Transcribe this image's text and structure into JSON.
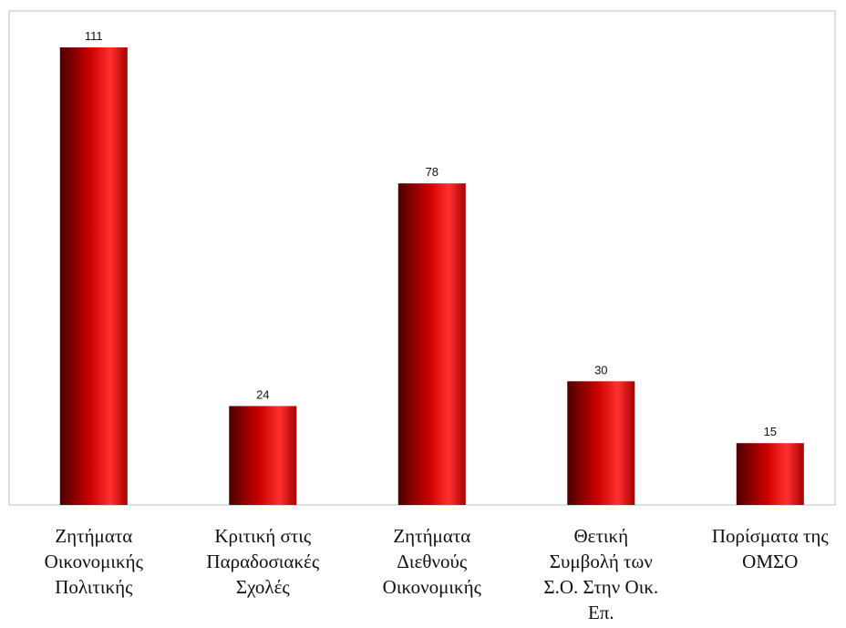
{
  "chart_data": {
    "type": "bar",
    "title": "",
    "xlabel": "",
    "ylabel": "",
    "categories": [
      [
        "Ζητήματα",
        "Οικονομικής",
        "Πολιτικής"
      ],
      [
        "Κριτική στις",
        "Παραδοσιακές",
        "Σχολές"
      ],
      [
        "Ζητήματα",
        "Διεθνούς",
        "Οικονομικής"
      ],
      [
        "Θετική",
        "Συμβολή των",
        "Σ.Ο.  Στην Οικ.",
        "Επ."
      ],
      [
        "Πορίσματα της",
        "ΟΜΣΟ"
      ]
    ],
    "values": [
      111,
      24,
      78,
      30,
      15
    ],
    "data_labels": [
      "111",
      "24",
      "78",
      "30",
      "15"
    ],
    "ylim": [
      0,
      111
    ],
    "grid": false,
    "legend": "none",
    "colors": {
      "bar_dark": "#4a0000",
      "bar_mid": "#cc0000",
      "bar_light": "#ff3030",
      "frame": "#cfd6e0"
    }
  }
}
